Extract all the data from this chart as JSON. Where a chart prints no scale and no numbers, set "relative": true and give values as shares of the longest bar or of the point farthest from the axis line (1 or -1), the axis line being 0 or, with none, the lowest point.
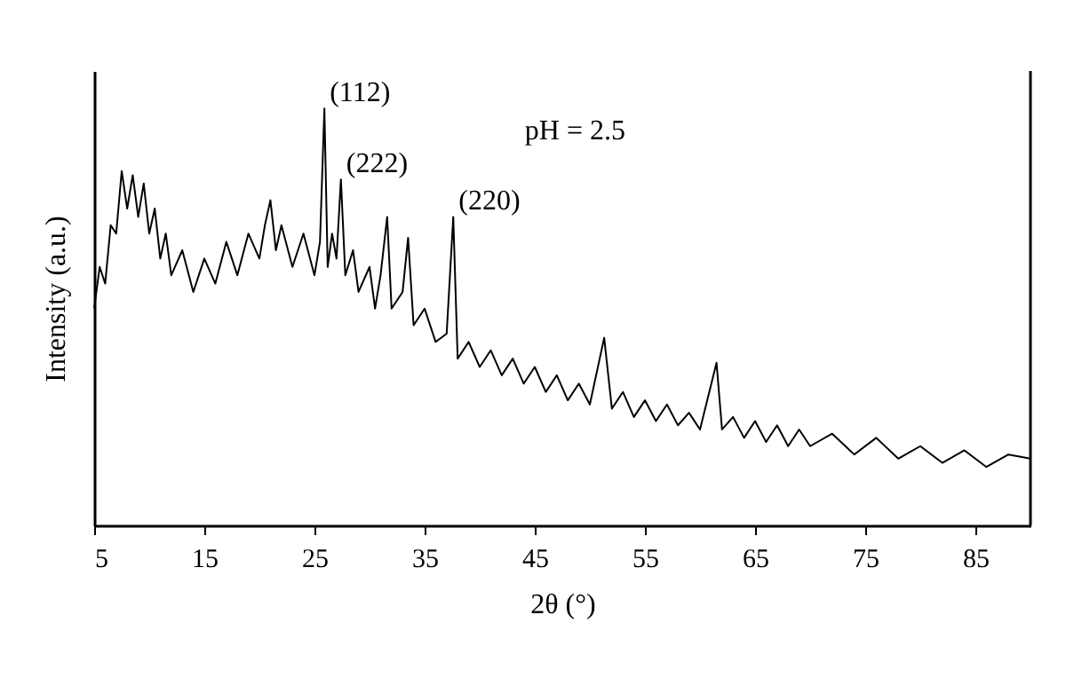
{
  "chart_data": {
    "type": "line",
    "relative": true,
    "xlabel": "2θ (°)",
    "ylabel": "Intensity (a.u.)",
    "x": [
      5,
      5.5,
      6,
      6.5,
      7,
      7.5,
      8,
      8.5,
      9,
      9.5,
      10,
      10.5,
      11,
      11.5,
      12,
      13,
      14,
      15,
      16,
      17,
      18,
      19,
      20,
      20.5,
      21,
      21.5,
      22,
      23,
      24,
      25,
      25.5,
      25.9,
      26.2,
      26.6,
      27,
      27.4,
      27.8,
      28.5,
      29,
      30,
      30.5,
      31,
      31.6,
      32,
      33,
      33.5,
      34,
      35,
      36,
      37,
      37.6,
      38,
      39,
      40,
      41,
      42,
      43,
      44,
      45,
      46,
      47,
      48,
      49,
      50,
      51.3,
      52,
      53,
      54,
      55,
      56,
      57,
      58,
      59,
      60,
      61.5,
      62,
      63,
      64,
      65,
      66,
      67,
      68,
      69,
      70,
      72,
      74,
      76,
      78,
      80,
      82,
      84,
      86,
      88,
      90
    ],
    "series": [
      {
        "color": "#000000",
        "values": [
          0.52,
          0.62,
          0.58,
          0.72,
          0.7,
          0.85,
          0.76,
          0.84,
          0.74,
          0.82,
          0.7,
          0.76,
          0.64,
          0.7,
          0.6,
          0.66,
          0.56,
          0.64,
          0.58,
          0.68,
          0.6,
          0.7,
          0.64,
          0.72,
          0.78,
          0.66,
          0.72,
          0.62,
          0.7,
          0.6,
          0.68,
          1.0,
          0.62,
          0.7,
          0.64,
          0.83,
          0.6,
          0.66,
          0.56,
          0.62,
          0.52,
          0.6,
          0.74,
          0.52,
          0.56,
          0.69,
          0.48,
          0.52,
          0.44,
          0.46,
          0.74,
          0.4,
          0.44,
          0.38,
          0.42,
          0.36,
          0.4,
          0.34,
          0.38,
          0.32,
          0.36,
          0.3,
          0.34,
          0.29,
          0.45,
          0.28,
          0.32,
          0.26,
          0.3,
          0.25,
          0.29,
          0.24,
          0.27,
          0.23,
          0.39,
          0.23,
          0.26,
          0.21,
          0.25,
          0.2,
          0.24,
          0.19,
          0.23,
          0.19,
          0.22,
          0.17,
          0.21,
          0.16,
          0.19,
          0.15,
          0.18,
          0.14,
          0.17,
          0.16
        ]
      }
    ],
    "xlim": [
      5,
      90
    ],
    "xticks": [
      5,
      15,
      25,
      35,
      45,
      55,
      65,
      75,
      85
    ],
    "grid": false,
    "marker": "none",
    "annotations": [
      {
        "text": "(112)",
        "x": 25.9,
        "y": 1.0
      },
      {
        "text": "(222)",
        "x": 27.4,
        "y": 0.83
      },
      {
        "text": "(220)",
        "x": 37.6,
        "y": 0.74
      },
      "pH = 2.5"
    ]
  }
}
